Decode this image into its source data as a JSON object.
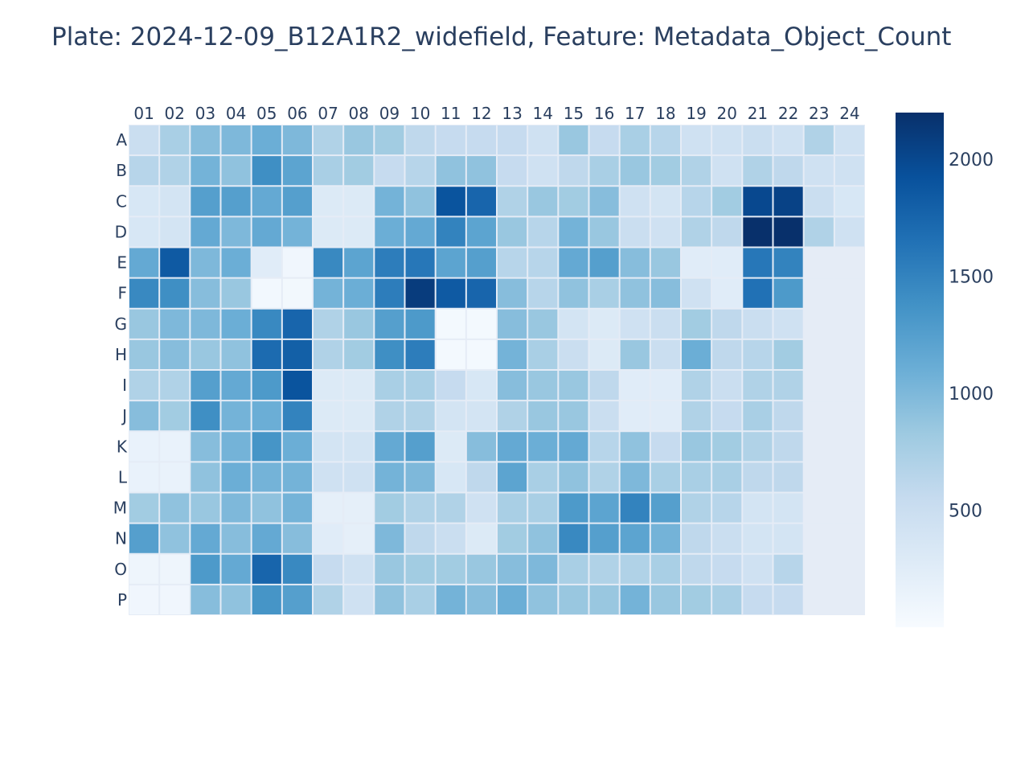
{
  "chart_data": {
    "type": "heatmap",
    "title": "Plate: 2024-12-09_B12A1R2_widefield, Feature: Metadata_Object_Count",
    "xlabel": "",
    "ylabel": "",
    "columns": [
      "01",
      "02",
      "03",
      "04",
      "05",
      "06",
      "07",
      "08",
      "09",
      "10",
      "11",
      "12",
      "13",
      "14",
      "15",
      "16",
      "17",
      "18",
      "19",
      "20",
      "21",
      "22",
      "23",
      "24"
    ],
    "rows": [
      "A",
      "B",
      "C",
      "D",
      "E",
      "F",
      "G",
      "H",
      "I",
      "J",
      "K",
      "L",
      "M",
      "N",
      "O",
      "P"
    ],
    "values": [
      [
        500,
        750,
        950,
        1000,
        1100,
        1000,
        700,
        850,
        800,
        600,
        550,
        550,
        550,
        450,
        850,
        550,
        750,
        650,
        450,
        450,
        500,
        450,
        700,
        450
      ],
      [
        650,
        700,
        1050,
        900,
        1400,
        1200,
        750,
        800,
        550,
        650,
        900,
        900,
        550,
        450,
        600,
        750,
        850,
        800,
        700,
        450,
        700,
        600,
        450,
        450
      ],
      [
        350,
        400,
        1250,
        1250,
        1150,
        1250,
        300,
        300,
        1050,
        900,
        1900,
        1750,
        700,
        850,
        800,
        950,
        450,
        400,
        650,
        800,
        2000,
        2050,
        500,
        350
      ],
      [
        350,
        400,
        1150,
        1000,
        1150,
        1050,
        300,
        300,
        1100,
        1150,
        1500,
        1200,
        850,
        650,
        1050,
        850,
        500,
        450,
        700,
        600,
        2200,
        2200,
        700,
        450
      ],
      [
        1150,
        1850,
        1000,
        1100,
        250,
        80,
        1450,
        1200,
        1550,
        1600,
        1200,
        1250,
        650,
        650,
        1150,
        1250,
        950,
        850,
        250,
        250,
        1600,
        1500,
        null,
        null
      ],
      [
        1450,
        1400,
        950,
        850,
        50,
        60,
        1050,
        1100,
        1550,
        2100,
        1850,
        1750,
        950,
        650,
        900,
        750,
        900,
        950,
        450,
        250,
        1650,
        1300,
        null,
        null
      ],
      [
        850,
        1000,
        1000,
        1100,
        1450,
        1750,
        700,
        850,
        1250,
        1300,
        40,
        40,
        950,
        850,
        400,
        300,
        450,
        500,
        800,
        600,
        500,
        450,
        null,
        null
      ],
      [
        850,
        950,
        850,
        900,
        1700,
        1800,
        700,
        800,
        1400,
        1550,
        40,
        40,
        1050,
        750,
        500,
        300,
        850,
        500,
        1100,
        600,
        650,
        800,
        null,
        null
      ],
      [
        700,
        700,
        1250,
        1150,
        1300,
        1900,
        300,
        300,
        750,
        750,
        550,
        350,
        950,
        850,
        850,
        600,
        250,
        250,
        700,
        500,
        700,
        700,
        null,
        null
      ],
      [
        950,
        800,
        1400,
        1050,
        1100,
        1500,
        300,
        300,
        700,
        700,
        400,
        400,
        700,
        850,
        850,
        500,
        250,
        250,
        700,
        550,
        750,
        600,
        null,
        null
      ],
      [
        150,
        150,
        950,
        1050,
        1350,
        1100,
        400,
        400,
        1150,
        1250,
        300,
        950,
        1150,
        1100,
        1150,
        650,
        900,
        550,
        850,
        800,
        700,
        600,
        null,
        null
      ],
      [
        150,
        150,
        900,
        1100,
        1050,
        1050,
        450,
        450,
        1050,
        1000,
        350,
        600,
        1200,
        750,
        900,
        700,
        1000,
        750,
        750,
        750,
        600,
        600,
        null,
        null
      ],
      [
        800,
        900,
        850,
        1000,
        900,
        1050,
        200,
        200,
        800,
        700,
        700,
        450,
        750,
        750,
        1300,
        1200,
        1500,
        1250,
        700,
        650,
        400,
        400,
        null,
        null
      ],
      [
        1250,
        900,
        1150,
        950,
        1150,
        950,
        250,
        200,
        1000,
        600,
        500,
        300,
        800,
        900,
        1450,
        1250,
        1200,
        1050,
        600,
        500,
        400,
        400,
        null,
        null
      ],
      [
        100,
        100,
        1300,
        1150,
        1750,
        1450,
        550,
        450,
        850,
        800,
        800,
        850,
        950,
        1000,
        750,
        700,
        700,
        750,
        600,
        550,
        450,
        650,
        null,
        null
      ],
      [
        80,
        80,
        950,
        900,
        1350,
        1250,
        700,
        450,
        900,
        750,
        1050,
        950,
        1100,
        900,
        850,
        850,
        1050,
        850,
        800,
        750,
        550,
        550,
        null,
        null
      ]
    ],
    "zmin": 0,
    "zmax": 2200,
    "colorscale": "Blues",
    "colorbar_ticks": [
      2000,
      1500,
      1000,
      500
    ],
    "colors": {
      "missing": "#e5ecf6",
      "gap": "#e5ecf6",
      "text": "#2a3f5f"
    },
    "grid": false,
    "legend": "colorbar-right"
  }
}
